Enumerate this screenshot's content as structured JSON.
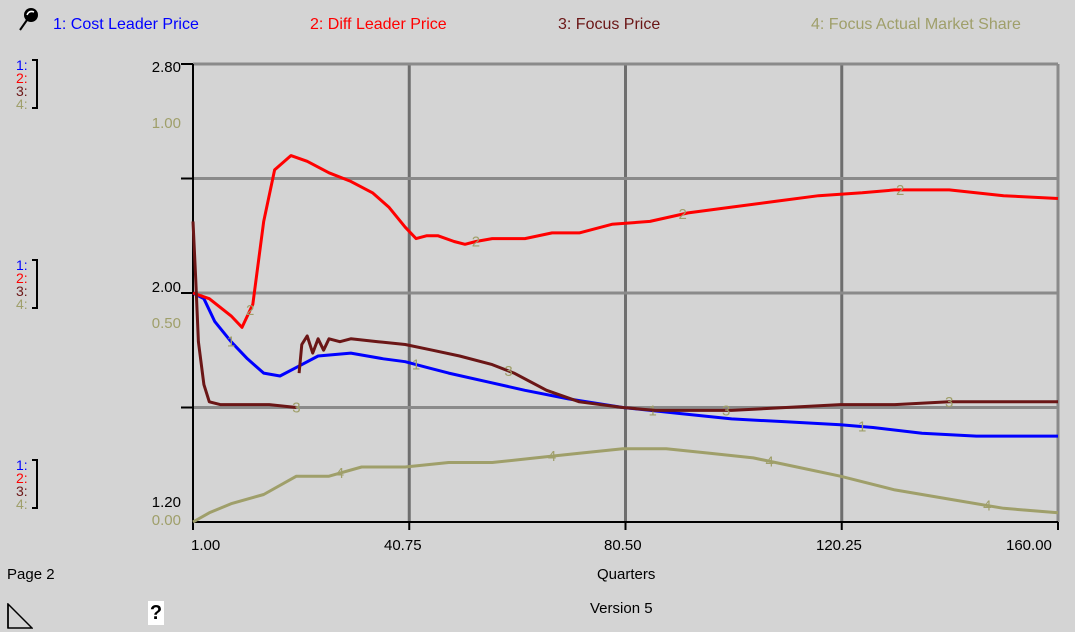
{
  "colors": {
    "s1": "#0000ff",
    "s2": "#ff0000",
    "s3": "#6b1616",
    "s4": "#9f9f6a"
  },
  "legend": [
    {
      "num": "1",
      "label": "1: Cost Leader Price"
    },
    {
      "num": "2",
      "label": "2: Diff Leader Price"
    },
    {
      "num": "3",
      "label": "3: Focus Price"
    },
    {
      "num": "4",
      "label": "4: Focus Actual Market Share"
    }
  ],
  "axis_blocks": [
    {
      "labels": [
        "1:",
        "2:",
        "3:",
        "4:"
      ],
      "scale_a": "2.80",
      "scale_b": "1.00"
    },
    {
      "labels": [
        "1:",
        "2:",
        "3:",
        "4:"
      ],
      "scale_a": "2.00",
      "scale_b": "0.50"
    },
    {
      "labels": [
        "1:",
        "2:",
        "3:",
        "4:"
      ],
      "scale_a": "1.20",
      "scale_b": "0.00"
    }
  ],
  "footer": {
    "page": "Page 2",
    "version": "Version 5",
    "help": "?"
  },
  "chart_data": {
    "type": "line",
    "xlabel": "Quarters",
    "xlim": [
      1,
      160
    ],
    "x_ticks": [
      "1.00",
      "40.75",
      "80.50",
      "120.25",
      "160.00"
    ],
    "grid": true,
    "y_axes": {
      "s1_s3": {
        "ylim": [
          1.2,
          2.8
        ],
        "ticks": [
          "1.20",
          "2.00",
          "2.80"
        ]
      },
      "s2": {
        "ylim": [
          1.2,
          2.8
        ],
        "ticks": [
          "1.20",
          "2.00",
          "2.80"
        ]
      },
      "s4": {
        "ylim": [
          0.0,
          1.0
        ],
        "ticks": [
          "0.00",
          "0.50",
          "1.00"
        ]
      }
    },
    "series": [
      {
        "name": "Cost Leader Price",
        "marker": "1",
        "points": [
          [
            1,
            2.0
          ],
          [
            3,
            1.98
          ],
          [
            5,
            1.9
          ],
          [
            8,
            1.83
          ],
          [
            11,
            1.77
          ],
          [
            14,
            1.72
          ],
          [
            17,
            1.71
          ],
          [
            20,
            1.74
          ],
          [
            24,
            1.78
          ],
          [
            30,
            1.79
          ],
          [
            36,
            1.77
          ],
          [
            40,
            1.76
          ],
          [
            44,
            1.74
          ],
          [
            48,
            1.72
          ],
          [
            55,
            1.69
          ],
          [
            62,
            1.66
          ],
          [
            70,
            1.63
          ],
          [
            80,
            1.6
          ],
          [
            90,
            1.58
          ],
          [
            100,
            1.56
          ],
          [
            110,
            1.55
          ],
          [
            120,
            1.54
          ],
          [
            126,
            1.53
          ],
          [
            135,
            1.51
          ],
          [
            145,
            1.5
          ],
          [
            160,
            1.5
          ]
        ],
        "gaps": [
          [
            4,
            5
          ],
          [
            42.5,
            44
          ]
        ],
        "label_x": [
          8,
          42,
          85.5,
          124
        ]
      },
      {
        "name": "Diff Leader Price",
        "marker": "2",
        "points": [
          [
            1,
            2.0
          ],
          [
            4,
            1.98
          ],
          [
            8,
            1.92
          ],
          [
            10,
            1.88
          ],
          [
            12,
            1.96
          ],
          [
            14,
            2.25
          ],
          [
            16,
            2.43
          ],
          [
            19,
            2.48
          ],
          [
            22,
            2.46
          ],
          [
            26,
            2.42
          ],
          [
            30,
            2.39
          ],
          [
            34,
            2.35
          ],
          [
            37,
            2.3
          ],
          [
            40,
            2.23
          ],
          [
            42,
            2.19
          ],
          [
            44,
            2.2
          ],
          [
            46,
            2.2
          ],
          [
            49,
            2.18
          ],
          [
            51,
            2.17
          ],
          [
            53,
            2.18
          ],
          [
            56,
            2.19
          ],
          [
            62,
            2.19
          ],
          [
            67,
            2.21
          ],
          [
            72,
            2.21
          ],
          [
            78,
            2.24
          ],
          [
            85,
            2.25
          ],
          [
            92,
            2.28
          ],
          [
            100,
            2.3
          ],
          [
            108,
            2.32
          ],
          [
            116,
            2.34
          ],
          [
            124,
            2.35
          ],
          [
            130,
            2.36
          ],
          [
            140,
            2.36
          ],
          [
            150,
            2.34
          ],
          [
            160,
            2.33
          ]
        ],
        "gaps": [
          [
            52,
            54
          ]
        ],
        "label_x": [
          11.5,
          53,
          91,
          131
        ]
      },
      {
        "name": "Focus Price",
        "marker": "3",
        "points": [
          [
            1,
            2.25
          ],
          [
            1.5,
            2.05
          ],
          [
            2,
            1.83
          ],
          [
            3,
            1.68
          ],
          [
            4,
            1.62
          ],
          [
            6,
            1.61
          ],
          [
            10,
            1.61
          ],
          [
            15,
            1.61
          ],
          [
            20,
            1.6
          ],
          [
            20.5,
            1.72
          ],
          [
            21,
            1.82
          ],
          [
            22,
            1.85
          ],
          [
            23,
            1.79
          ],
          [
            24,
            1.84
          ],
          [
            25,
            1.8
          ],
          [
            26,
            1.84
          ],
          [
            28,
            1.83
          ],
          [
            30,
            1.84
          ],
          [
            35,
            1.83
          ],
          [
            40,
            1.82
          ],
          [
            45,
            1.8
          ],
          [
            50,
            1.78
          ],
          [
            56,
            1.75
          ],
          [
            60,
            1.72
          ],
          [
            66,
            1.66
          ],
          [
            72,
            1.62
          ],
          [
            80,
            1.6
          ],
          [
            86,
            1.59
          ],
          [
            92,
            1.59
          ],
          [
            100,
            1.59
          ],
          [
            110,
            1.6
          ],
          [
            120,
            1.61
          ],
          [
            130,
            1.61
          ],
          [
            140,
            1.62
          ],
          [
            150,
            1.62
          ],
          [
            160,
            1.62
          ]
        ],
        "gaps": [
          [
            20,
            20.5
          ]
        ],
        "label_x": [
          20,
          59,
          99,
          140
        ]
      },
      {
        "name": "Focus Actual Market Share",
        "marker": "4",
        "points": [
          [
            1,
            0.0
          ],
          [
            4,
            0.02
          ],
          [
            8,
            0.04
          ],
          [
            14,
            0.06
          ],
          [
            20,
            0.1
          ],
          [
            26,
            0.1
          ],
          [
            32,
            0.12
          ],
          [
            40,
            0.12
          ],
          [
            48,
            0.13
          ],
          [
            56,
            0.13
          ],
          [
            64,
            0.14
          ],
          [
            72,
            0.15
          ],
          [
            80,
            0.16
          ],
          [
            88,
            0.16
          ],
          [
            96,
            0.15
          ],
          [
            104,
            0.14
          ],
          [
            112,
            0.12
          ],
          [
            120,
            0.1
          ],
          [
            130,
            0.07
          ],
          [
            140,
            0.05
          ],
          [
            150,
            0.03
          ],
          [
            160,
            0.02
          ]
        ],
        "gaps": [],
        "label_x": [
          28,
          67,
          107,
          147
        ]
      }
    ]
  }
}
